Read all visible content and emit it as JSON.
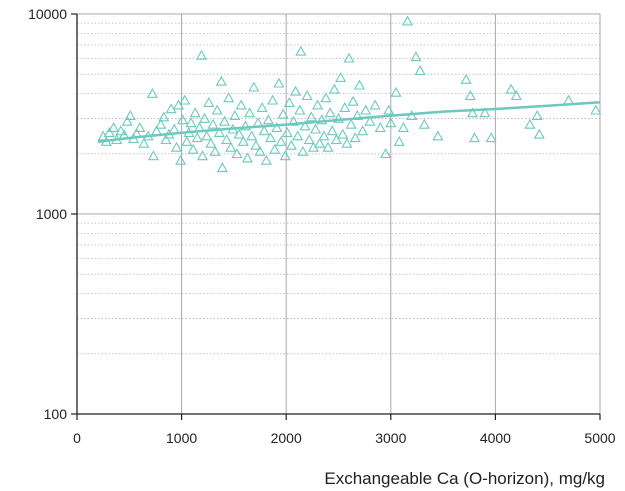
{
  "chart_data": {
    "type": "scatter",
    "title": "",
    "xlabel": "Exchangeable Ca (O-horizon), mg/kg",
    "ylabel": "",
    "xlim": [
      0,
      5000
    ],
    "ylim": [
      100,
      10000
    ],
    "yscale": "log",
    "x_ticks": [
      0,
      1000,
      2000,
      3000,
      4000,
      5000
    ],
    "y_ticks": [
      100,
      1000,
      10000
    ],
    "x_tick_labels": [
      "0",
      "1000",
      "2000",
      "3000",
      "4000",
      "5000"
    ],
    "y_tick_labels": [
      "100",
      "1000",
      "10000"
    ],
    "grid": {
      "x_major": true,
      "y_major": true,
      "y_minor": "dotted"
    },
    "marker": "open-triangle",
    "color": "#6cc9bd",
    "trend_line": {
      "x": [
        200,
        500,
        1000,
        1500,
        2000,
        2500,
        3000,
        3500,
        4000,
        4500,
        5000
      ],
      "y": [
        2300,
        2400,
        2550,
        2680,
        2800,
        2950,
        3100,
        3250,
        3350,
        3480,
        3620
      ]
    },
    "points": [
      [
        250,
        2450
      ],
      [
        280,
        2300
      ],
      [
        310,
        2550
      ],
      [
        350,
        2700
      ],
      [
        380,
        2350
      ],
      [
        420,
        2600
      ],
      [
        450,
        2480
      ],
      [
        480,
        2900
      ],
      [
        510,
        3100
      ],
      [
        540,
        2380
      ],
      [
        570,
        2520
      ],
      [
        600,
        2700
      ],
      [
        640,
        2250
      ],
      [
        680,
        2450
      ],
      [
        720,
        4000
      ],
      [
        730,
        1950
      ],
      [
        760,
        2600
      ],
      [
        800,
        2800
      ],
      [
        830,
        3050
      ],
      [
        850,
        2350
      ],
      [
        880,
        2500
      ],
      [
        900,
        3350
      ],
      [
        930,
        2650
      ],
      [
        950,
        2150
      ],
      [
        970,
        3500
      ],
      [
        990,
        1850
      ],
      [
        1010,
        2950
      ],
      [
        1030,
        3700
      ],
      [
        1050,
        2300
      ],
      [
        1070,
        2550
      ],
      [
        1090,
        2850
      ],
      [
        1110,
        2100
      ],
      [
        1130,
        3200
      ],
      [
        1150,
        2400
      ],
      [
        1170,
        2700
      ],
      [
        1190,
        6200
      ],
      [
        1200,
        1950
      ],
      [
        1220,
        3000
      ],
      [
        1240,
        2450
      ],
      [
        1260,
        3600
      ],
      [
        1280,
        2250
      ],
      [
        1300,
        2800
      ],
      [
        1320,
        2050
      ],
      [
        1340,
        3300
      ],
      [
        1360,
        2550
      ],
      [
        1380,
        4600
      ],
      [
        1390,
        1700
      ],
      [
        1410,
        2900
      ],
      [
        1430,
        2350
      ],
      [
        1450,
        3800
      ],
      [
        1470,
        2150
      ],
      [
        1490,
        2650
      ],
      [
        1510,
        3100
      ],
      [
        1530,
        2000
      ],
      [
        1550,
        2500
      ],
      [
        1570,
        3500
      ],
      [
        1590,
        2300
      ],
      [
        1610,
        2750
      ],
      [
        1630,
        1900
      ],
      [
        1650,
        3200
      ],
      [
        1670,
        2450
      ],
      [
        1690,
        4300
      ],
      [
        1710,
        2200
      ],
      [
        1730,
        2850
      ],
      [
        1750,
        2050
      ],
      [
        1770,
        3400
      ],
      [
        1790,
        2600
      ],
      [
        1810,
        1850
      ],
      [
        1830,
        2950
      ],
      [
        1850,
        2400
      ],
      [
        1870,
        3700
      ],
      [
        1890,
        2100
      ],
      [
        1910,
        2700
      ],
      [
        1930,
        4500
      ],
      [
        1950,
        2300
      ],
      [
        1970,
        3150
      ],
      [
        1990,
        1950
      ],
      [
        2010,
        2550
      ],
      [
        2030,
        3600
      ],
      [
        2050,
        2200
      ],
      [
        2070,
        2900
      ],
      [
        2090,
        4100
      ],
      [
        2110,
        2450
      ],
      [
        2130,
        3300
      ],
      [
        2140,
        6500
      ],
      [
        2160,
        2050
      ],
      [
        2180,
        2750
      ],
      [
        2200,
        3900
      ],
      [
        2220,
        2350
      ],
      [
        2240,
        3050
      ],
      [
        2260,
        2150
      ],
      [
        2280,
        2650
      ],
      [
        2300,
        3500
      ],
      [
        2320,
        2250
      ],
      [
        2340,
        2950
      ],
      [
        2360,
        2450
      ],
      [
        2380,
        3800
      ],
      [
        2400,
        2150
      ],
      [
        2420,
        3200
      ],
      [
        2440,
        2600
      ],
      [
        2460,
        4200
      ],
      [
        2480,
        2350
      ],
      [
        2500,
        3000
      ],
      [
        2520,
        4800
      ],
      [
        2540,
        2500
      ],
      [
        2560,
        3400
      ],
      [
        2580,
        2250
      ],
      [
        2600,
        6000
      ],
      [
        2620,
        2800
      ],
      [
        2640,
        3650
      ],
      [
        2660,
        2400
      ],
      [
        2680,
        3100
      ],
      [
        2700,
        4400
      ],
      [
        2730,
        2600
      ],
      [
        2760,
        3300
      ],
      [
        2800,
        2900
      ],
      [
        2850,
        3500
      ],
      [
        2900,
        2700
      ],
      [
        2950,
        2000
      ],
      [
        2980,
        3300
      ],
      [
        3000,
        2850
      ],
      [
        3050,
        4050
      ],
      [
        3080,
        2300
      ],
      [
        3120,
        2700
      ],
      [
        3160,
        9200
      ],
      [
        3200,
        3100
      ],
      [
        3240,
        6100
      ],
      [
        3280,
        5200
      ],
      [
        3320,
        2800
      ],
      [
        3450,
        2450
      ],
      [
        3720,
        4700
      ],
      [
        3760,
        3900
      ],
      [
        3780,
        3200
      ],
      [
        3800,
        2400
      ],
      [
        3900,
        3200
      ],
      [
        3960,
        2400
      ],
      [
        4150,
        4200
      ],
      [
        4200,
        3900
      ],
      [
        4330,
        2800
      ],
      [
        4400,
        3100
      ],
      [
        4420,
        2500
      ],
      [
        4700,
        3700
      ],
      [
        4960,
        3300
      ]
    ]
  }
}
